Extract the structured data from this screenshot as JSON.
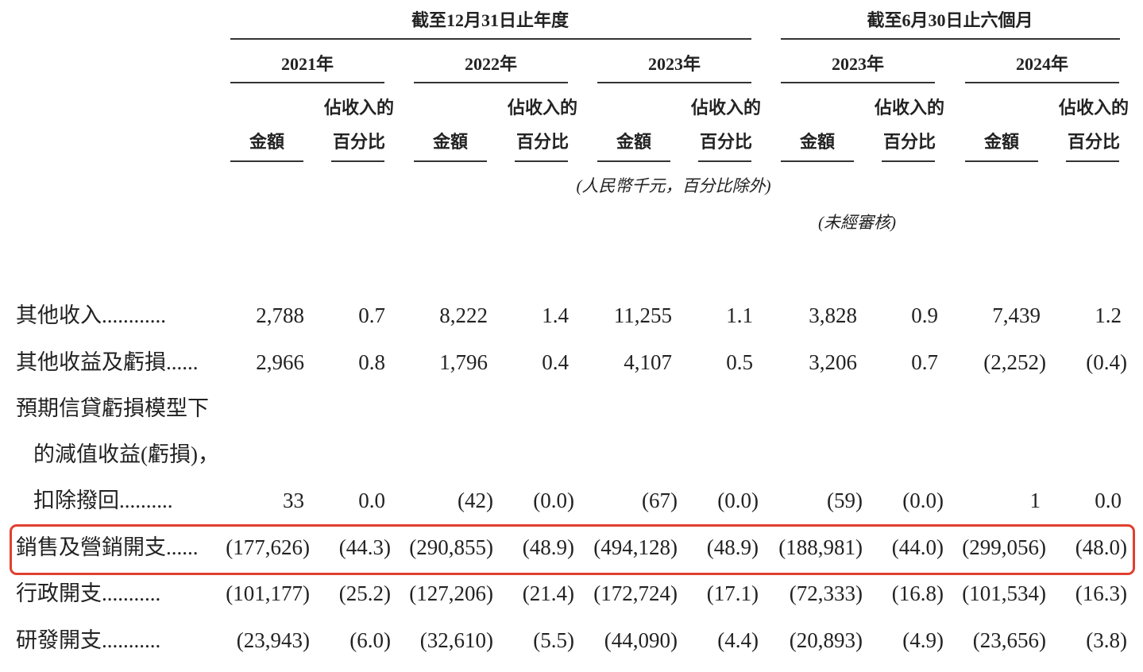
{
  "header": {
    "period_group_1": "截至12月31日止年度",
    "period_group_2": "截至6月30日止六個月",
    "years": [
      "2021年",
      "2022年",
      "2023年",
      "2023年",
      "2024年"
    ],
    "amount_label": "金額",
    "pct_label_line1": "佔收入的",
    "pct_label_line2": "百分比",
    "unit_note": "(人民幣千元，百分比除外)",
    "unaudited_note": "(未經審核)"
  },
  "highlight_color": "#e0402f",
  "rows": [
    {
      "label": [
        "其他收入............"
      ],
      "values": [
        "2,788",
        "0.7",
        "8,222",
        "1.4",
        "11,255",
        "1.1",
        "3,828",
        "0.9",
        "7,439",
        "1.2"
      ]
    },
    {
      "label": [
        "其他收益及虧損......"
      ],
      "values": [
        "2,966",
        "0.8",
        "1,796",
        "0.4",
        "4,107",
        "0.5",
        "3,206",
        "0.7",
        "(2,252)",
        "(0.4)"
      ]
    },
    {
      "label": [
        "預期信貸虧損模型下",
        "的減值收益(虧損)，",
        "扣除撥回.........."
      ],
      "values": [
        "33",
        "0.0",
        "(42)",
        "(0.0)",
        "(67)",
        "(0.0)",
        "(59)",
        "(0.0)",
        "1",
        "0.0"
      ]
    },
    {
      "label": [
        "銷售及營銷開支......"
      ],
      "highlighted": true,
      "values": [
        "(177,626)",
        "(44.3)",
        "(290,855)",
        "(48.9)",
        "(494,128)",
        "(48.9)",
        "(188,981)",
        "(44.0)",
        "(299,056)",
        "(48.0)"
      ]
    },
    {
      "label": [
        "行政開支..........."
      ],
      "values": [
        "(101,177)",
        "(25.2)",
        "(127,206)",
        "(21.4)",
        "(172,724)",
        "(17.1)",
        "(72,333)",
        "(16.8)",
        "(101,534)",
        "(16.3)"
      ]
    },
    {
      "label": [
        "研發開支..........."
      ],
      "values": [
        "(23,943)",
        "(6.0)",
        "(32,610)",
        "(5.5)",
        "(44,090)",
        "(4.4)",
        "(20,893)",
        "(4.9)",
        "(23,656)",
        "(3.8)"
      ]
    }
  ]
}
